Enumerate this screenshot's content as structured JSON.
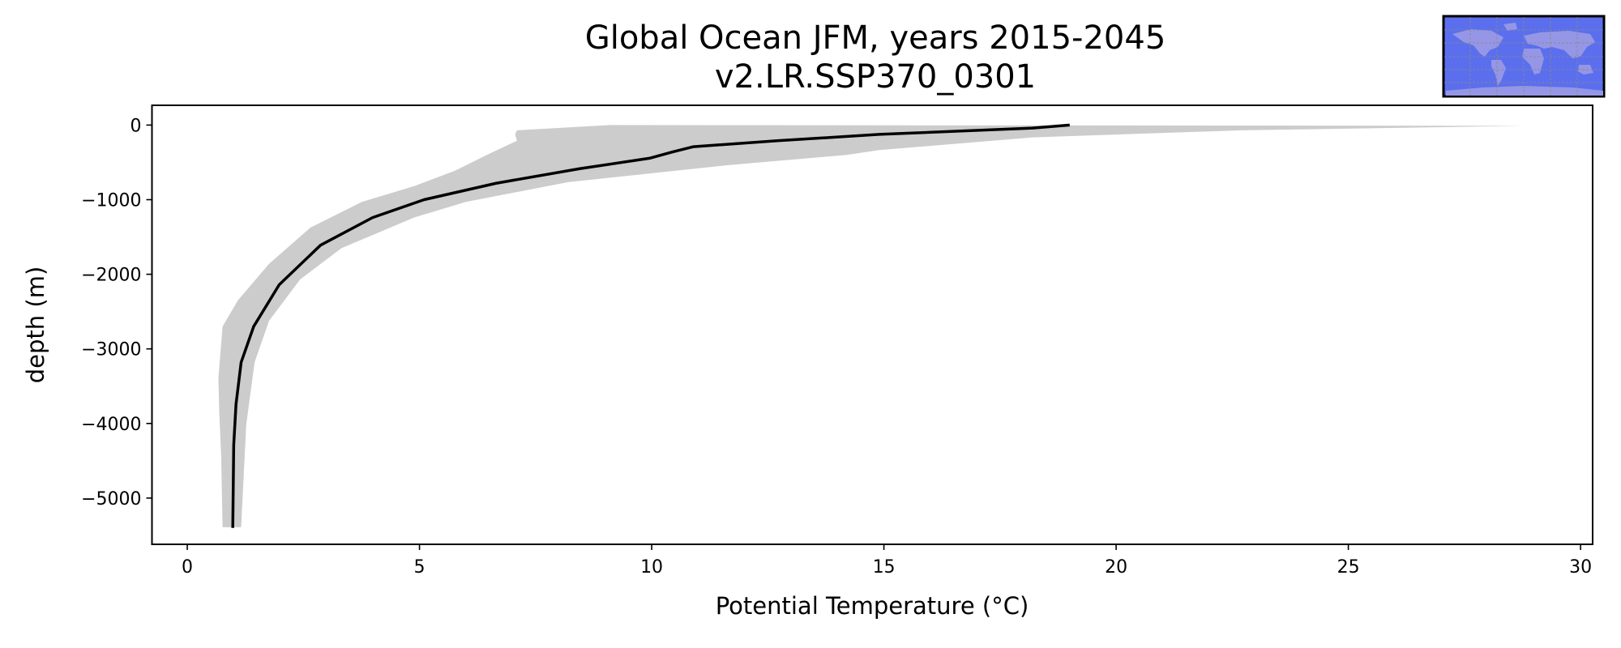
{
  "chart_data": {
    "type": "line",
    "title": "Global Ocean JFM, years 2015-2045",
    "subtitle": "v2.LR.SSP370_0301",
    "xlabel": "Potential Temperature (°C)",
    "ylabel": "depth (m)",
    "xlim": [
      -0.76,
      30.26
    ],
    "ylim": [
      -5620,
      265
    ],
    "xticks": [
      0,
      5,
      10,
      15,
      20,
      25,
      30
    ],
    "xtick_labels": [
      "0",
      "5",
      "10",
      "15",
      "20",
      "25",
      "30"
    ],
    "yticks": [
      0,
      -1000,
      -2000,
      -3000,
      -4000,
      -5000
    ],
    "ytick_labels": [
      "0",
      "−1000",
      "−2000",
      "−3000",
      "−4000",
      "−5000"
    ],
    "grid": false,
    "colors": {
      "mean_line": "#000000",
      "range_band": "#cccccc"
    },
    "series": [
      {
        "type": "line",
        "points": [
          [
            19.0,
            0
          ],
          [
            18.2,
            -40
          ],
          [
            14.9,
            -125
          ],
          [
            12.7,
            -210
          ],
          [
            10.9,
            -290
          ],
          [
            10.45,
            -360
          ],
          [
            9.95,
            -445
          ],
          [
            8.45,
            -585
          ],
          [
            6.65,
            -780
          ],
          [
            5.1,
            -1000
          ],
          [
            3.99,
            -1240
          ],
          [
            2.87,
            -1610
          ],
          [
            1.98,
            -2140
          ],
          [
            1.43,
            -2700
          ],
          [
            1.16,
            -3180
          ],
          [
            1.05,
            -3740
          ],
          [
            1.0,
            -4290
          ],
          [
            0.98,
            -5400
          ]
        ]
      },
      {
        "type": "band",
        "lower": [
          [
            9.1,
            0
          ],
          [
            7.1,
            -70
          ],
          [
            7.06,
            -125
          ],
          [
            7.1,
            -210
          ],
          [
            6.45,
            -400
          ],
          [
            5.77,
            -610
          ],
          [
            4.88,
            -820
          ],
          [
            3.76,
            -1030
          ],
          [
            2.65,
            -1375
          ],
          [
            1.76,
            -1860
          ],
          [
            1.09,
            -2350
          ],
          [
            0.76,
            -2700
          ],
          [
            0.67,
            -3390
          ],
          [
            0.69,
            -3875
          ],
          [
            0.73,
            -4430
          ],
          [
            0.76,
            -5390
          ]
        ],
        "upper": [
          [
            28.8,
            -10
          ],
          [
            22.7,
            -70
          ],
          [
            18.2,
            -165
          ],
          [
            14.9,
            -335
          ],
          [
            14.2,
            -400
          ],
          [
            11.6,
            -540
          ],
          [
            8.2,
            -765
          ],
          [
            6.0,
            -1030
          ],
          [
            4.88,
            -1240
          ],
          [
            3.32,
            -1650
          ],
          [
            2.43,
            -2070
          ],
          [
            1.76,
            -2625
          ],
          [
            1.45,
            -3180
          ],
          [
            1.27,
            -4015
          ],
          [
            1.16,
            -5390
          ]
        ]
      }
    ]
  },
  "inset_map": {
    "ocean_color": "#5b6fee",
    "land_color": "#9696e6"
  }
}
